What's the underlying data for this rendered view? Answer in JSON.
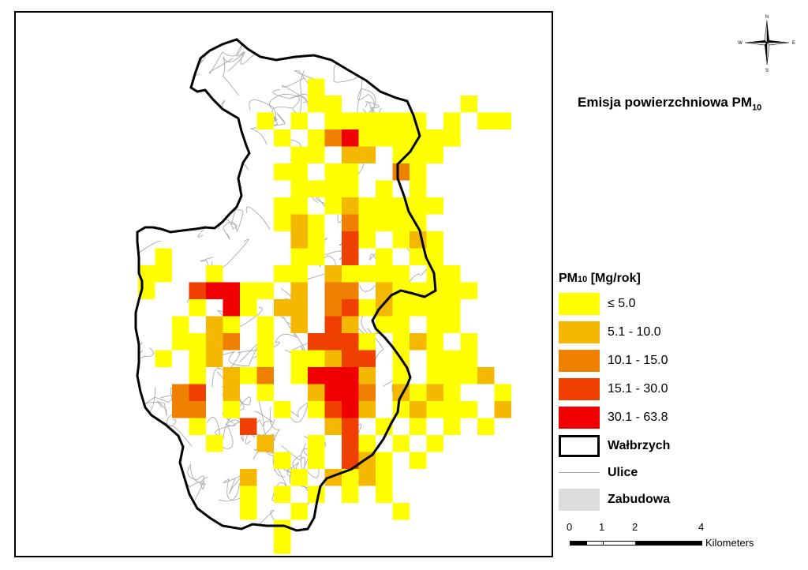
{
  "map": {
    "title_main": "Emisja powierzchniowa PM",
    "title_sub": "10",
    "compass": {
      "n": "N",
      "s": "S",
      "e": "E",
      "w": "W"
    },
    "legend": {
      "title_pre": "PM",
      "title_sub": "10",
      "title_post": " [Mg/rok]",
      "classes": [
        {
          "label": "≤ 5.0",
          "color": "#FFFF00"
        },
        {
          "label": "5.1 - 10.0",
          "color": "#F5B800"
        },
        {
          "label": "10.1 - 15.0",
          "color": "#F08000"
        },
        {
          "label": "15.1 - 30.0",
          "color": "#F04000"
        },
        {
          "label": "30.1 - 63.8",
          "color": "#F00000"
        }
      ],
      "boundary_label": "Wałbrzych",
      "roads_label": "Ulice",
      "built_label": "Zabudowa",
      "built_color": "#DCDCDC",
      "roads_color": "#AAAAAA"
    },
    "scale": {
      "ticks": [
        "0",
        "1",
        "2",
        "4"
      ],
      "unit": "Kilometers"
    }
  }
}
